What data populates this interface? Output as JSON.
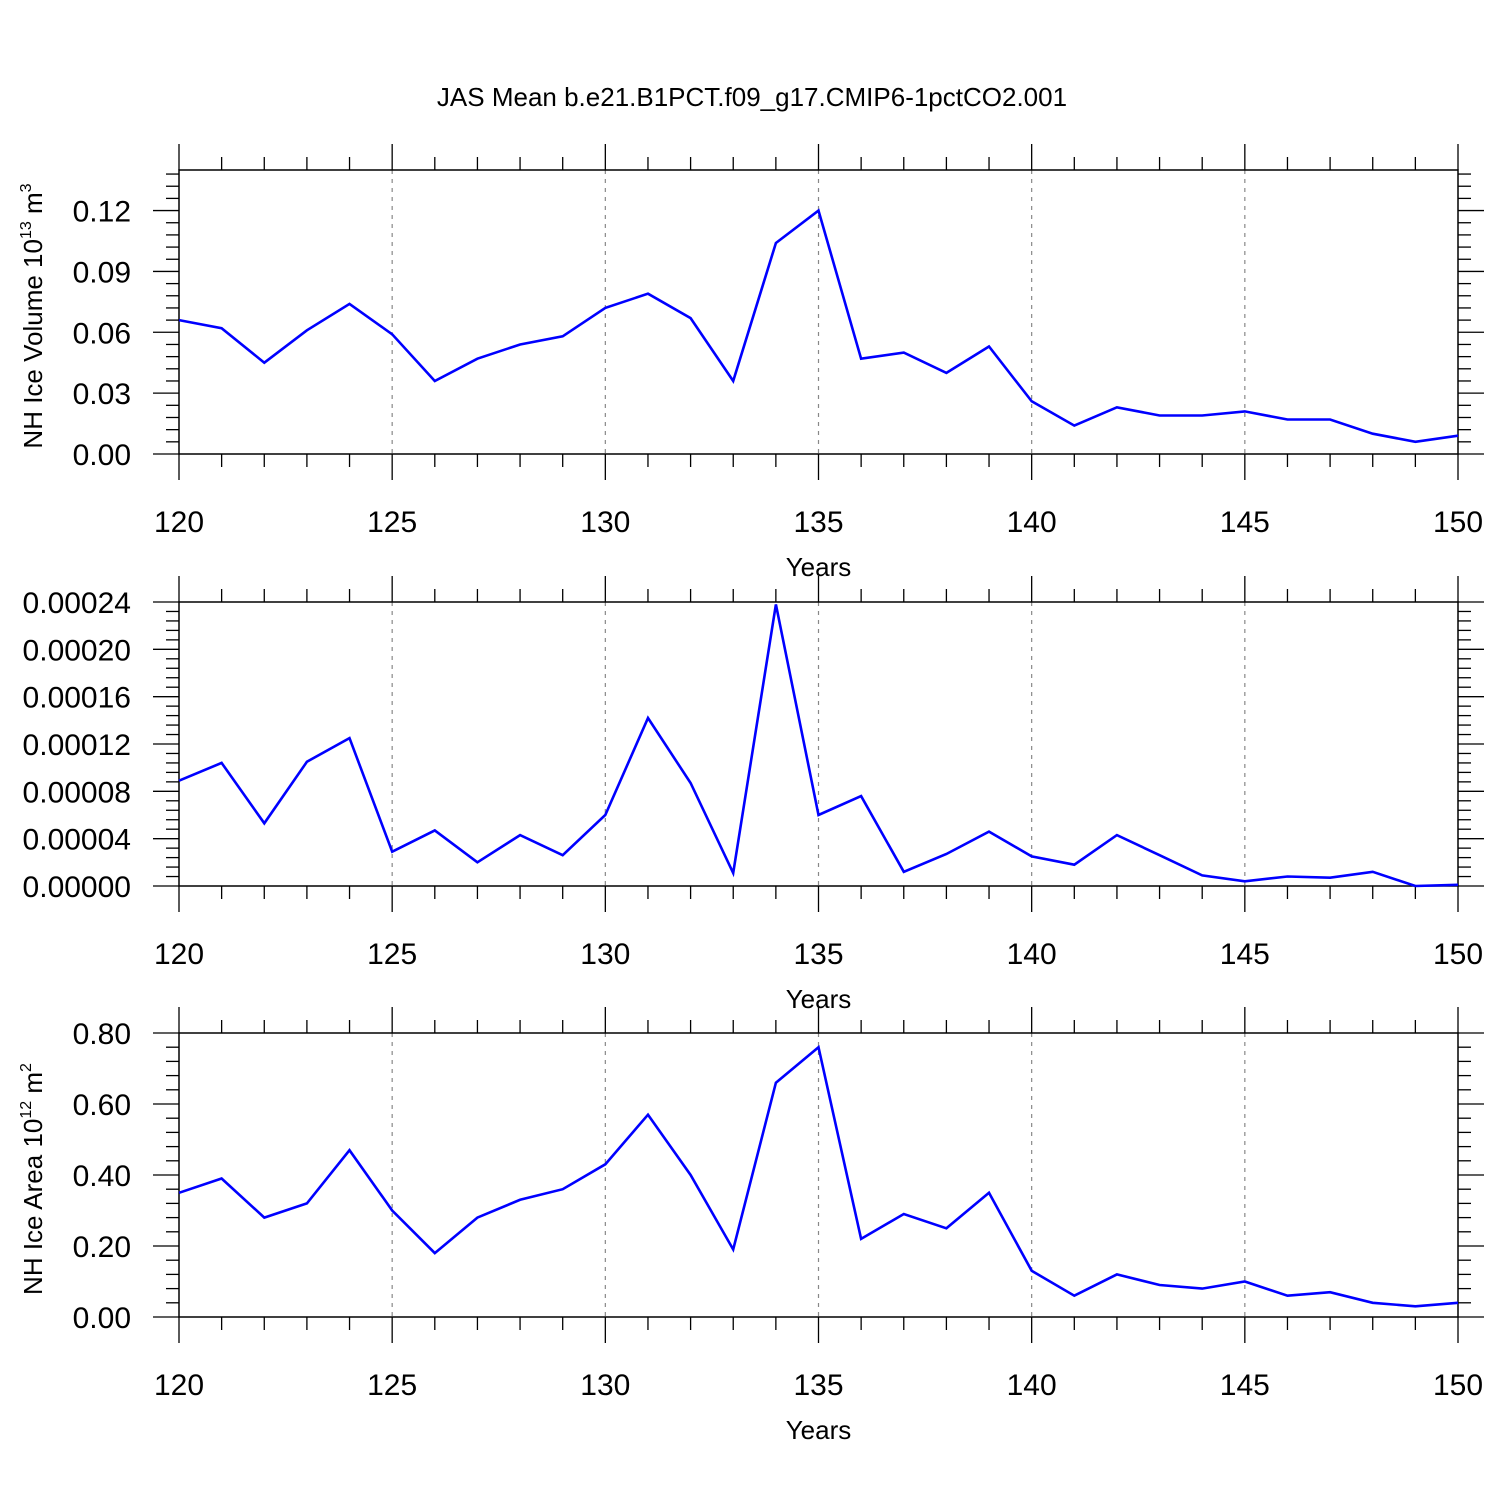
{
  "figure": {
    "title": "JAS Mean b.e21.B1PCT.f09_g17.CMIP6-1pctCO2.001"
  },
  "colors": {
    "series": "#0000ff",
    "axis": "#000000",
    "grid": "#888888",
    "background": "#ffffff"
  },
  "chart_data": [
    {
      "type": "line",
      "title": "JAS Mean b.e21.B1PCT.f09_g17.CMIP6-1pctCO2.001",
      "xlabel": "Years",
      "ylabel": "NH Ice Volume 10^13 m^3",
      "ylabel_parts": {
        "base": "NH Ice Volume 10",
        "exp1": "13",
        "mid": " m",
        "exp2": "3"
      },
      "xlim": [
        120,
        150
      ],
      "ylim": [
        0.0,
        0.14
      ],
      "x_ticks": [
        120,
        125,
        130,
        135,
        140,
        145,
        150
      ],
      "x_tick_labels": [
        "120",
        "125",
        "130",
        "135",
        "140",
        "145",
        "150"
      ],
      "y_ticks": [
        0.0,
        0.03,
        0.06,
        0.09,
        0.12
      ],
      "y_tick_labels": [
        "0.00",
        "0.03",
        "0.06",
        "0.09",
        "0.12"
      ],
      "grid": "vertical dashed at major x ticks",
      "x": [
        120,
        121,
        122,
        123,
        124,
        125,
        126,
        127,
        128,
        129,
        130,
        131,
        132,
        133,
        134,
        135,
        136,
        137,
        138,
        139,
        140,
        141,
        142,
        143,
        144,
        145,
        146,
        147,
        148,
        149,
        150
      ],
      "values": [
        0.066,
        0.062,
        0.045,
        0.061,
        0.074,
        0.059,
        0.036,
        0.047,
        0.054,
        0.058,
        0.072,
        0.079,
        0.067,
        0.036,
        0.104,
        0.12,
        0.047,
        0.05,
        0.04,
        0.053,
        0.026,
        0.014,
        0.023,
        0.019,
        0.019,
        0.021,
        0.017,
        0.017,
        0.01,
        0.006,
        0.009
      ]
    },
    {
      "type": "line",
      "xlabel": "Years",
      "ylabel": "",
      "xlim": [
        120,
        150
      ],
      "ylim": [
        0.0,
        0.00024
      ],
      "x_ticks": [
        120,
        125,
        130,
        135,
        140,
        145,
        150
      ],
      "x_tick_labels": [
        "120",
        "125",
        "130",
        "135",
        "140",
        "145",
        "150"
      ],
      "y_ticks": [
        0.0,
        4e-05,
        8e-05,
        0.00012,
        0.00016,
        0.0002,
        0.00024
      ],
      "y_tick_labels": [
        "0.00000",
        "0.00004",
        "0.00008",
        "0.00012",
        "0.00016",
        "0.00020",
        "0.00024"
      ],
      "grid": "vertical dashed at major x ticks",
      "x": [
        120,
        121,
        122,
        123,
        124,
        125,
        126,
        127,
        128,
        129,
        130,
        131,
        132,
        133,
        134,
        135,
        136,
        137,
        138,
        139,
        140,
        141,
        142,
        143,
        144,
        145,
        146,
        147,
        148,
        149,
        150
      ],
      "values": [
        8.9e-05,
        0.000104,
        5.3e-05,
        0.000105,
        0.000125,
        2.9e-05,
        4.7e-05,
        2e-05,
        4.3e-05,
        2.6e-05,
        6e-05,
        0.000142,
        8.7e-05,
        1.1e-05,
        0.000238,
        6e-05,
        7.6e-05,
        1.2e-05,
        2.7e-05,
        4.6e-05,
        2.5e-05,
        1.8e-05,
        4.3e-05,
        2.6e-05,
        9e-06,
        4e-06,
        8e-06,
        7e-06,
        1.2e-05,
        0.0,
        1e-06
      ]
    },
    {
      "type": "line",
      "xlabel": "Years",
      "ylabel": "NH Ice Area 10^12 m^2",
      "ylabel_parts": {
        "base": "NH Ice Area 10",
        "exp1": "12",
        "mid": " m",
        "exp2": "2"
      },
      "xlim": [
        120,
        150
      ],
      "ylim": [
        0.0,
        0.8
      ],
      "x_ticks": [
        120,
        125,
        130,
        135,
        140,
        145,
        150
      ],
      "x_tick_labels": [
        "120",
        "125",
        "130",
        "135",
        "140",
        "145",
        "150"
      ],
      "y_ticks": [
        0.0,
        0.2,
        0.4,
        0.6,
        0.8
      ],
      "y_tick_labels": [
        "0.00",
        "0.20",
        "0.40",
        "0.60",
        "0.80"
      ],
      "grid": "vertical dashed at major x ticks",
      "x": [
        120,
        121,
        122,
        123,
        124,
        125,
        126,
        127,
        128,
        129,
        130,
        131,
        132,
        133,
        134,
        135,
        136,
        137,
        138,
        139,
        140,
        141,
        142,
        143,
        144,
        145,
        146,
        147,
        148,
        149,
        150
      ],
      "values": [
        0.35,
        0.39,
        0.28,
        0.32,
        0.47,
        0.3,
        0.18,
        0.28,
        0.33,
        0.36,
        0.43,
        0.57,
        0.4,
        0.19,
        0.66,
        0.76,
        0.22,
        0.29,
        0.25,
        0.35,
        0.13,
        0.06,
        0.12,
        0.09,
        0.08,
        0.1,
        0.06,
        0.07,
        0.04,
        0.03,
        0.04
      ]
    }
  ]
}
